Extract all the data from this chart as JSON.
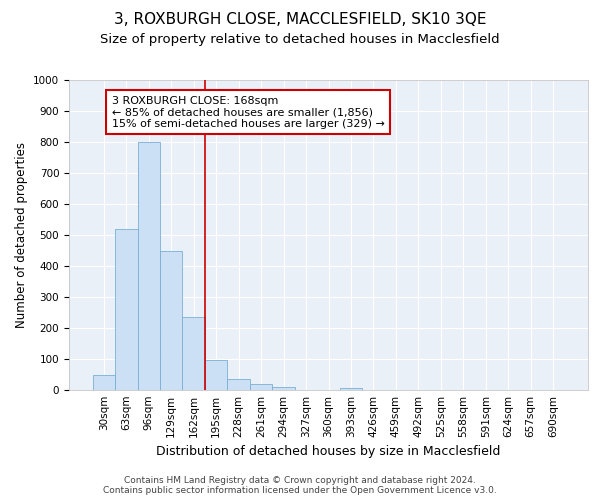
{
  "title1": "3, ROXBURGH CLOSE, MACCLESFIELD, SK10 3QE",
  "title2": "Size of property relative to detached houses in Macclesfield",
  "xlabel": "Distribution of detached houses by size in Macclesfield",
  "ylabel": "Number of detached properties",
  "footer1": "Contains HM Land Registry data © Crown copyright and database right 2024.",
  "footer2": "Contains public sector information licensed under the Open Government Licence v3.0.",
  "bar_labels": [
    "30sqm",
    "63sqm",
    "96sqm",
    "129sqm",
    "162sqm",
    "195sqm",
    "228sqm",
    "261sqm",
    "294sqm",
    "327sqm",
    "360sqm",
    "393sqm",
    "426sqm",
    "459sqm",
    "492sqm",
    "525sqm",
    "558sqm",
    "591sqm",
    "624sqm",
    "657sqm",
    "690sqm"
  ],
  "bar_values": [
    50,
    520,
    800,
    447,
    237,
    97,
    35,
    18,
    10,
    0,
    0,
    8,
    0,
    0,
    0,
    0,
    0,
    0,
    0,
    0,
    0
  ],
  "bar_color": "#cce0f5",
  "bar_edge_color": "#7bafd4",
  "ylim": [
    0,
    1000
  ],
  "yticks": [
    0,
    100,
    200,
    300,
    400,
    500,
    600,
    700,
    800,
    900,
    1000
  ],
  "vline_x": 4.5,
  "vline_color": "#cc0000",
  "annotation_text": "3 ROXBURGH CLOSE: 168sqm\n← 85% of detached houses are smaller (1,856)\n15% of semi-detached houses are larger (329) →",
  "annotation_box_color": "#ffffff",
  "annotation_box_edge": "#cc0000",
  "background_color": "#eaf0f8",
  "grid_color": "#ffffff",
  "title1_fontsize": 11,
  "title2_fontsize": 9.5,
  "xlabel_fontsize": 9,
  "ylabel_fontsize": 8.5,
  "annotation_fontsize": 8,
  "tick_fontsize": 7.5,
  "footer_fontsize": 6.5
}
